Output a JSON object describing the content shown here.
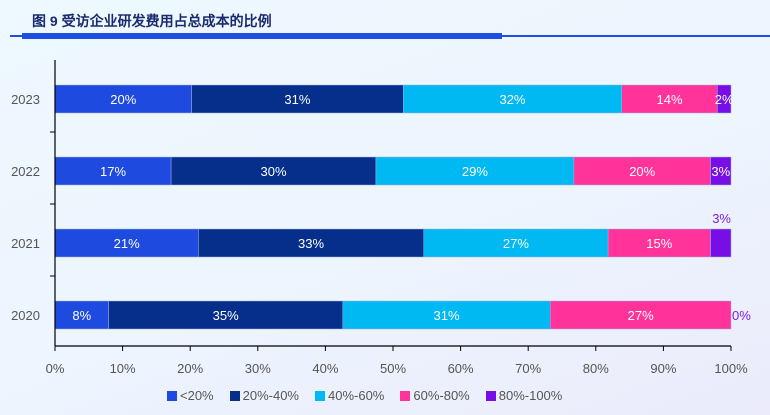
{
  "chart_data": {
    "type": "bar",
    "orientation": "horizontal-stacked",
    "title": "图 9 受访企业研发费用占总成本的比例",
    "categories": [
      "2023",
      "2022",
      "2021",
      "2020"
    ],
    "series": [
      {
        "name": "<20%",
        "color": "#1f4ae0",
        "values": [
          20,
          17,
          21,
          8
        ],
        "labels": [
          "20%",
          "17%",
          "21%",
          "8%"
        ]
      },
      {
        "name": "20%-40%",
        "color": "#062f8c",
        "values": [
          31,
          30,
          33,
          35
        ],
        "labels": [
          "31%",
          "30%",
          "33%",
          "35%"
        ]
      },
      {
        "name": "40%-60%",
        "color": "#00b9f2",
        "values": [
          32,
          29,
          27,
          31
        ],
        "labels": [
          "32%",
          "29%",
          "27%",
          "31%"
        ]
      },
      {
        "name": "60%-80%",
        "color": "#ff3399",
        "values": [
          14,
          20,
          15,
          27
        ],
        "labels": [
          "14%",
          "20%",
          "15%",
          "27%"
        ]
      },
      {
        "name": "80%-100%",
        "color": "#770ee6",
        "values": [
          2,
          3,
          3,
          0
        ],
        "labels": [
          "2%",
          "3%",
          "3%",
          "0%"
        ],
        "label_placement": [
          "inside",
          "inside",
          "above",
          "right"
        ]
      }
    ],
    "xlim": [
      0,
      100
    ],
    "xticks": [
      "0%",
      "10%",
      "20%",
      "30%",
      "40%",
      "50%",
      "60%",
      "70%",
      "80%",
      "90%",
      "100%"
    ],
    "legend": "bottom",
    "grid": false
  }
}
